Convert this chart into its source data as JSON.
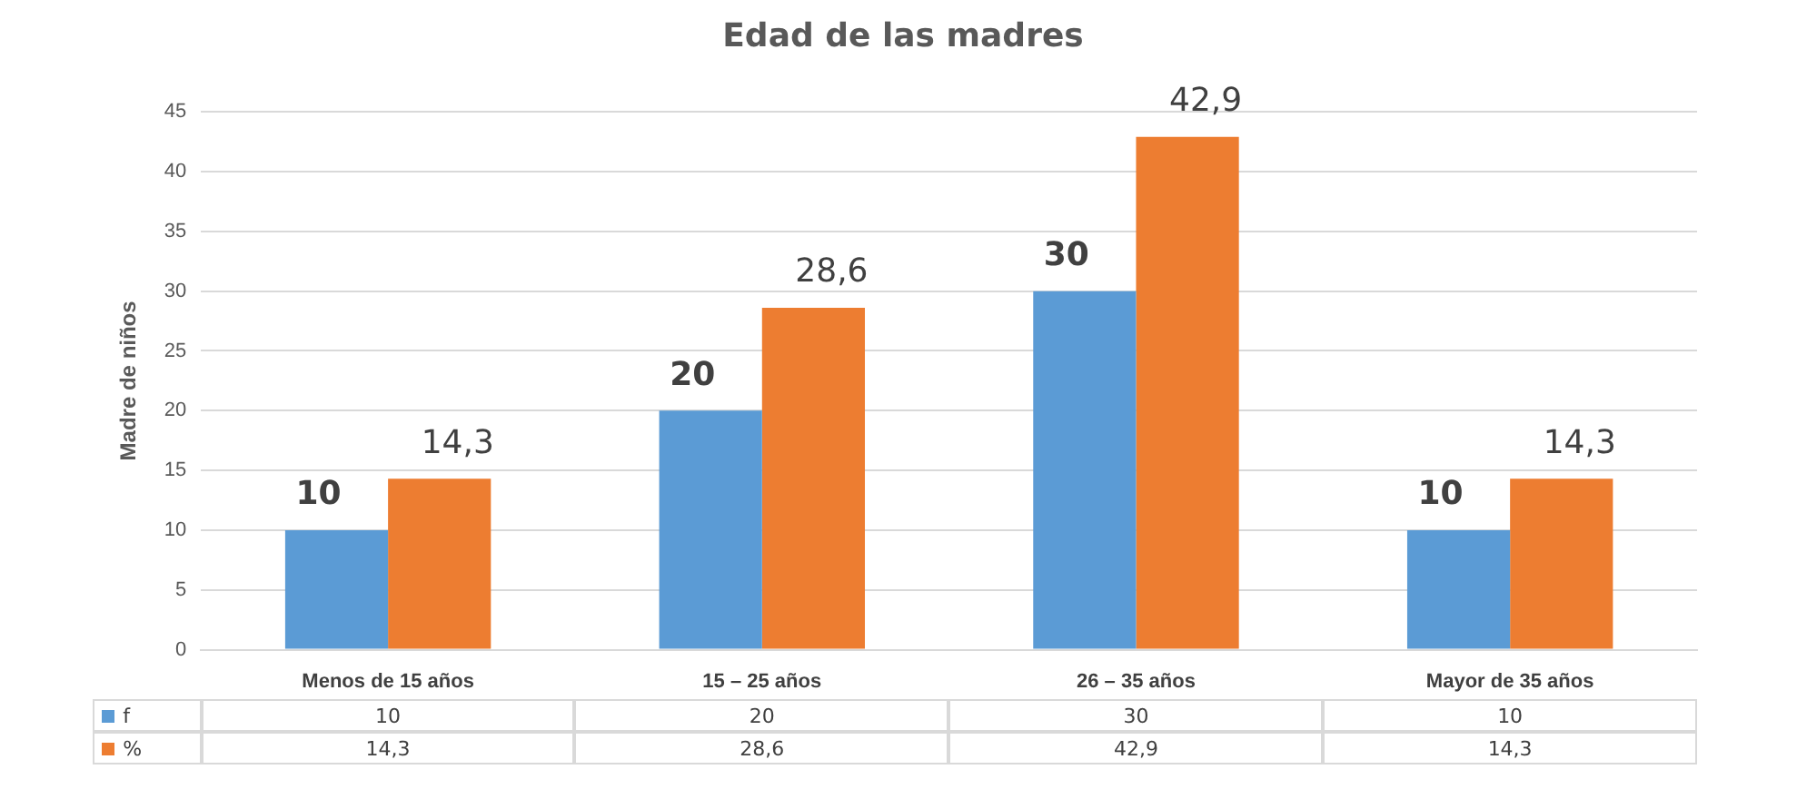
{
  "chart_data": {
    "type": "bar",
    "title": "Edad de las madres",
    "ylabel": "Madre de niños",
    "categories": [
      "Menos de 15 años",
      "15 – 25 años",
      "26 – 35 años",
      "Mayor de 35 años"
    ],
    "series": [
      {
        "name": "f",
        "color": "#5b9bd5",
        "values": [
          10,
          20,
          30,
          10
        ],
        "value_labels": [
          "10",
          "20",
          "30",
          "10"
        ]
      },
      {
        "name": "%",
        "color": "#ed7d31",
        "values": [
          14.3,
          28.6,
          42.9,
          14.3
        ],
        "value_labels": [
          "14,3",
          "28,6",
          "42,9",
          "14,3"
        ]
      }
    ],
    "ylim": [
      0,
      45
    ],
    "yticks": [
      0,
      5,
      10,
      15,
      20,
      25,
      30,
      35,
      40,
      45
    ],
    "grid": "y",
    "legend": "bottom"
  }
}
